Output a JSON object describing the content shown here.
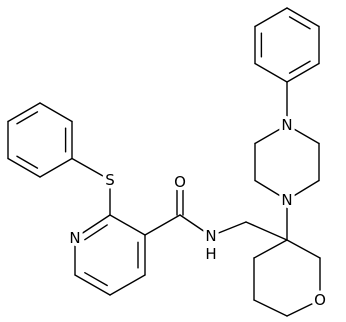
{
  "atoms": [
    {
      "label": "S"
    },
    {
      "label": "O"
    },
    {
      "label": "N"
    },
    {
      "label": "N"
    },
    {
      "label": "H"
    },
    {
      "label": "N"
    },
    {
      "label": "N"
    },
    {
      "label": "O"
    }
  ]
}
